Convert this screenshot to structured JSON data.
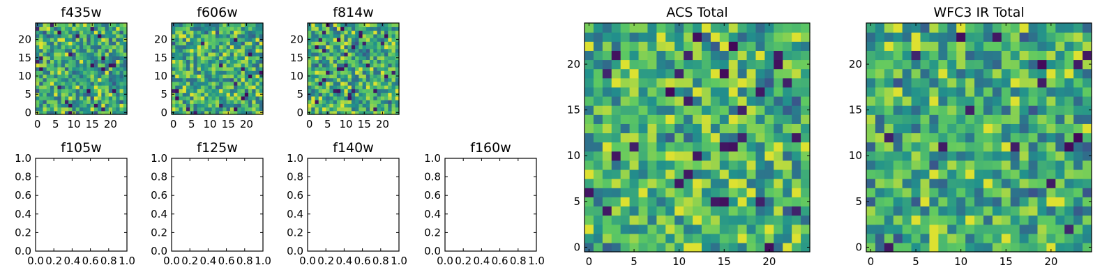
{
  "figure": {
    "background": "#ffffff",
    "colormap": "viridis",
    "colormap_stops": [
      "#440154",
      "#3b528b",
      "#21918c",
      "#5ec962",
      "#fde725"
    ]
  },
  "chart_data": [
    {
      "type": "heatmap",
      "title": "f435w",
      "grid": [
        25,
        25
      ],
      "xlim": [
        -0.5,
        24.5
      ],
      "ylim": [
        -0.5,
        24.5
      ],
      "xticks": [
        0,
        5,
        10,
        15,
        20
      ],
      "yticks": [
        0,
        5,
        10,
        15,
        20
      ],
      "seed": 11,
      "empty": false,
      "hot": 0.55
    },
    {
      "type": "heatmap",
      "title": "f606w",
      "grid": [
        25,
        25
      ],
      "xlim": [
        -0.5,
        24.5
      ],
      "ylim": [
        -0.5,
        24.5
      ],
      "xticks": [
        0,
        5,
        10,
        15,
        20
      ],
      "yticks": [
        0,
        5,
        10,
        15,
        20
      ],
      "seed": 23,
      "empty": false,
      "hot": 0.6
    },
    {
      "type": "heatmap",
      "title": "f814w",
      "grid": [
        25,
        25
      ],
      "xlim": [
        -0.5,
        24.5
      ],
      "ylim": [
        -0.5,
        24.5
      ],
      "xticks": [
        0,
        5,
        10,
        15,
        20
      ],
      "yticks": [
        0,
        5,
        10,
        15,
        20
      ],
      "seed": 37,
      "empty": false,
      "hot": 0.6
    },
    {
      "type": "empty",
      "title": "f105w",
      "xlim": [
        0,
        1
      ],
      "ylim": [
        0,
        1
      ],
      "xticks": [
        "0.0",
        "0.2",
        "0.4",
        "0.6",
        "0.8",
        "1.0"
      ],
      "yticks": [
        "0.0",
        "0.2",
        "0.4",
        "0.6",
        "0.8",
        "1.0"
      ],
      "empty": true
    },
    {
      "type": "empty",
      "title": "f125w",
      "xlim": [
        0,
        1
      ],
      "ylim": [
        0,
        1
      ],
      "xticks": [
        "0.0",
        "0.2",
        "0.4",
        "0.6",
        "0.8",
        "1.0"
      ],
      "yticks": [
        "0.0",
        "0.2",
        "0.4",
        "0.6",
        "0.8",
        "1.0"
      ],
      "empty": true
    },
    {
      "type": "empty",
      "title": "f140w",
      "xlim": [
        0,
        1
      ],
      "ylim": [
        0,
        1
      ],
      "xticks": [
        "0.0",
        "0.2",
        "0.4",
        "0.6",
        "0.8",
        "1.0"
      ],
      "yticks": [
        "0.0",
        "0.2",
        "0.4",
        "0.6",
        "0.8",
        "1.0"
      ],
      "empty": true
    },
    {
      "type": "empty",
      "title": "f160w",
      "xlim": [
        0,
        1
      ],
      "ylim": [
        0,
        1
      ],
      "xticks": [
        "0.0",
        "0.2",
        "0.4",
        "0.6",
        "0.8",
        "1.0"
      ],
      "yticks": [
        "0.0",
        "0.2",
        "0.4",
        "0.6",
        "0.8",
        "1.0"
      ],
      "empty": true
    },
    {
      "type": "heatmap",
      "title": "ACS Total",
      "grid": [
        25,
        25
      ],
      "xlim": [
        -0.5,
        24.5
      ],
      "ylim": [
        -0.5,
        24.5
      ],
      "xticks": [
        0,
        5,
        10,
        15,
        20
      ],
      "yticks": [
        0,
        5,
        10,
        15,
        20
      ],
      "seed": 51,
      "empty": false,
      "hot": 0.7
    },
    {
      "type": "heatmap",
      "title": "WFC3 IR Total",
      "grid": [
        25,
        25
      ],
      "xlim": [
        -0.5,
        24.5
      ],
      "ylim": [
        -0.5,
        24.5
      ],
      "xticks": [
        0,
        5,
        10,
        15,
        20
      ],
      "yticks": [
        0,
        5,
        10,
        15,
        20
      ],
      "seed": 77,
      "empty": false,
      "hot": 0.55
    }
  ]
}
